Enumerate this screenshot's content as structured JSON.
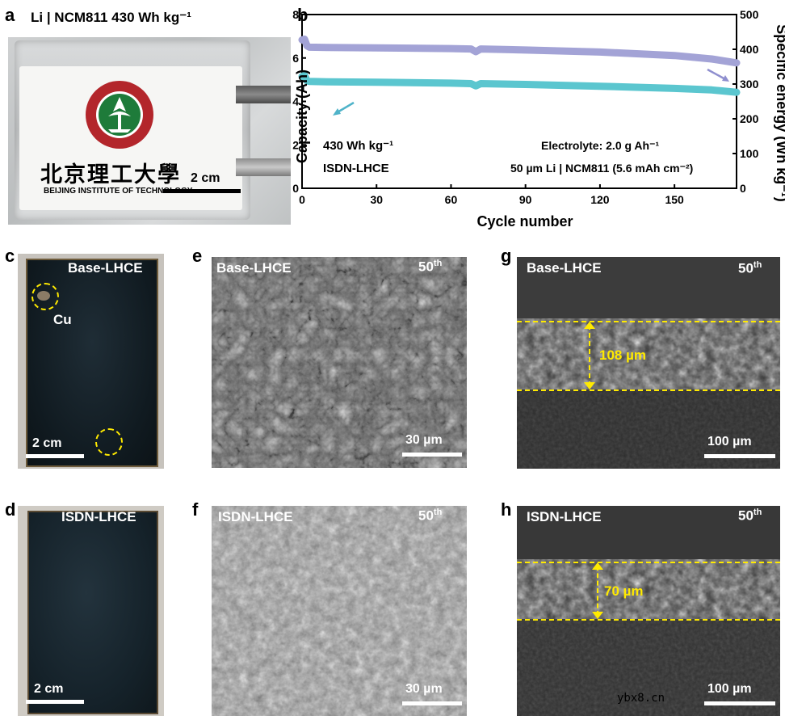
{
  "panel_a": {
    "letter": "a",
    "caption": "Li | NCM811 430 Wh kg⁻¹",
    "logo_text_cn": "北京理工大學",
    "logo_text_en": "BEIJING INSTITUTE OF TECHNOLOGY",
    "scale": "2 cm"
  },
  "panel_b": {
    "letter": "b",
    "annotation_1": "430 Wh kg⁻¹",
    "annotation_2": "ISDN-LHCE",
    "annotation_3": "Electrolyte: 2.0 g Ah⁻¹",
    "annotation_4": "50 µm Li | NCM811 (5.6 mAh cm⁻²)"
  },
  "chart_data": {
    "type": "line",
    "xlabel": "Cycle number",
    "ylabel": "Capacity (Ah)",
    "y2label": "Specific energy (Wh kg⁻¹)",
    "xlim": [
      0,
      175
    ],
    "ylim": [
      0,
      8
    ],
    "y2lim": [
      0,
      500
    ],
    "xticks": [
      0,
      30,
      60,
      90,
      120,
      150
    ],
    "yticks": [
      0,
      2,
      4,
      6,
      8
    ],
    "y2ticks": [
      0,
      100,
      200,
      300,
      400,
      500
    ],
    "colors": {
      "capacity": "#5bc6cf",
      "energy": "#a3a3d6",
      "arrow_capacity": "#4fb3c9",
      "arrow_energy": "#8f8fcf"
    },
    "series": [
      {
        "axis": "y2",
        "x": [
          0,
          1,
          2,
          3,
          10,
          30,
          60,
          68,
          70,
          72,
          90,
          120,
          150,
          165,
          175
        ],
        "values": [
          427,
          429,
          410,
          406,
          405,
          404,
          402,
          401,
          393,
          401,
          398,
          392,
          382,
          372,
          361
        ]
      },
      {
        "axis": "y",
        "x": [
          0,
          1,
          2,
          3,
          10,
          30,
          60,
          68,
          70,
          72,
          90,
          120,
          150,
          165,
          175
        ],
        "values": [
          5.15,
          5.2,
          4.95,
          4.92,
          4.9,
          4.88,
          4.84,
          4.82,
          4.72,
          4.82,
          4.78,
          4.7,
          4.6,
          4.53,
          4.42
        ]
      }
    ]
  },
  "panel_c": {
    "letter": "c",
    "title": "Base-LHCE",
    "marker": "Cu",
    "scale": "2 cm"
  },
  "panel_d": {
    "letter": "d",
    "title": "ISDN-LHCE",
    "scale": "2 cm"
  },
  "panel_e": {
    "letter": "e",
    "title": "Base-LHCE",
    "cycle": "50",
    "cycle_sup": "th",
    "scale": "30 µm"
  },
  "panel_f": {
    "letter": "f",
    "title": "ISDN-LHCE",
    "cycle": "50",
    "cycle_sup": "th",
    "scale": "30 µm"
  },
  "panel_g": {
    "letter": "g",
    "title": "Base-LHCE",
    "cycle": "50",
    "cycle_sup": "th",
    "thickness": "108 µm",
    "scale": "100 µm"
  },
  "panel_h": {
    "letter": "h",
    "title": "ISDN-LHCE",
    "cycle": "50",
    "cycle_sup": "th",
    "thickness": "70 µm",
    "scale": "100 µm"
  },
  "watermark": "ybx8.cn"
}
